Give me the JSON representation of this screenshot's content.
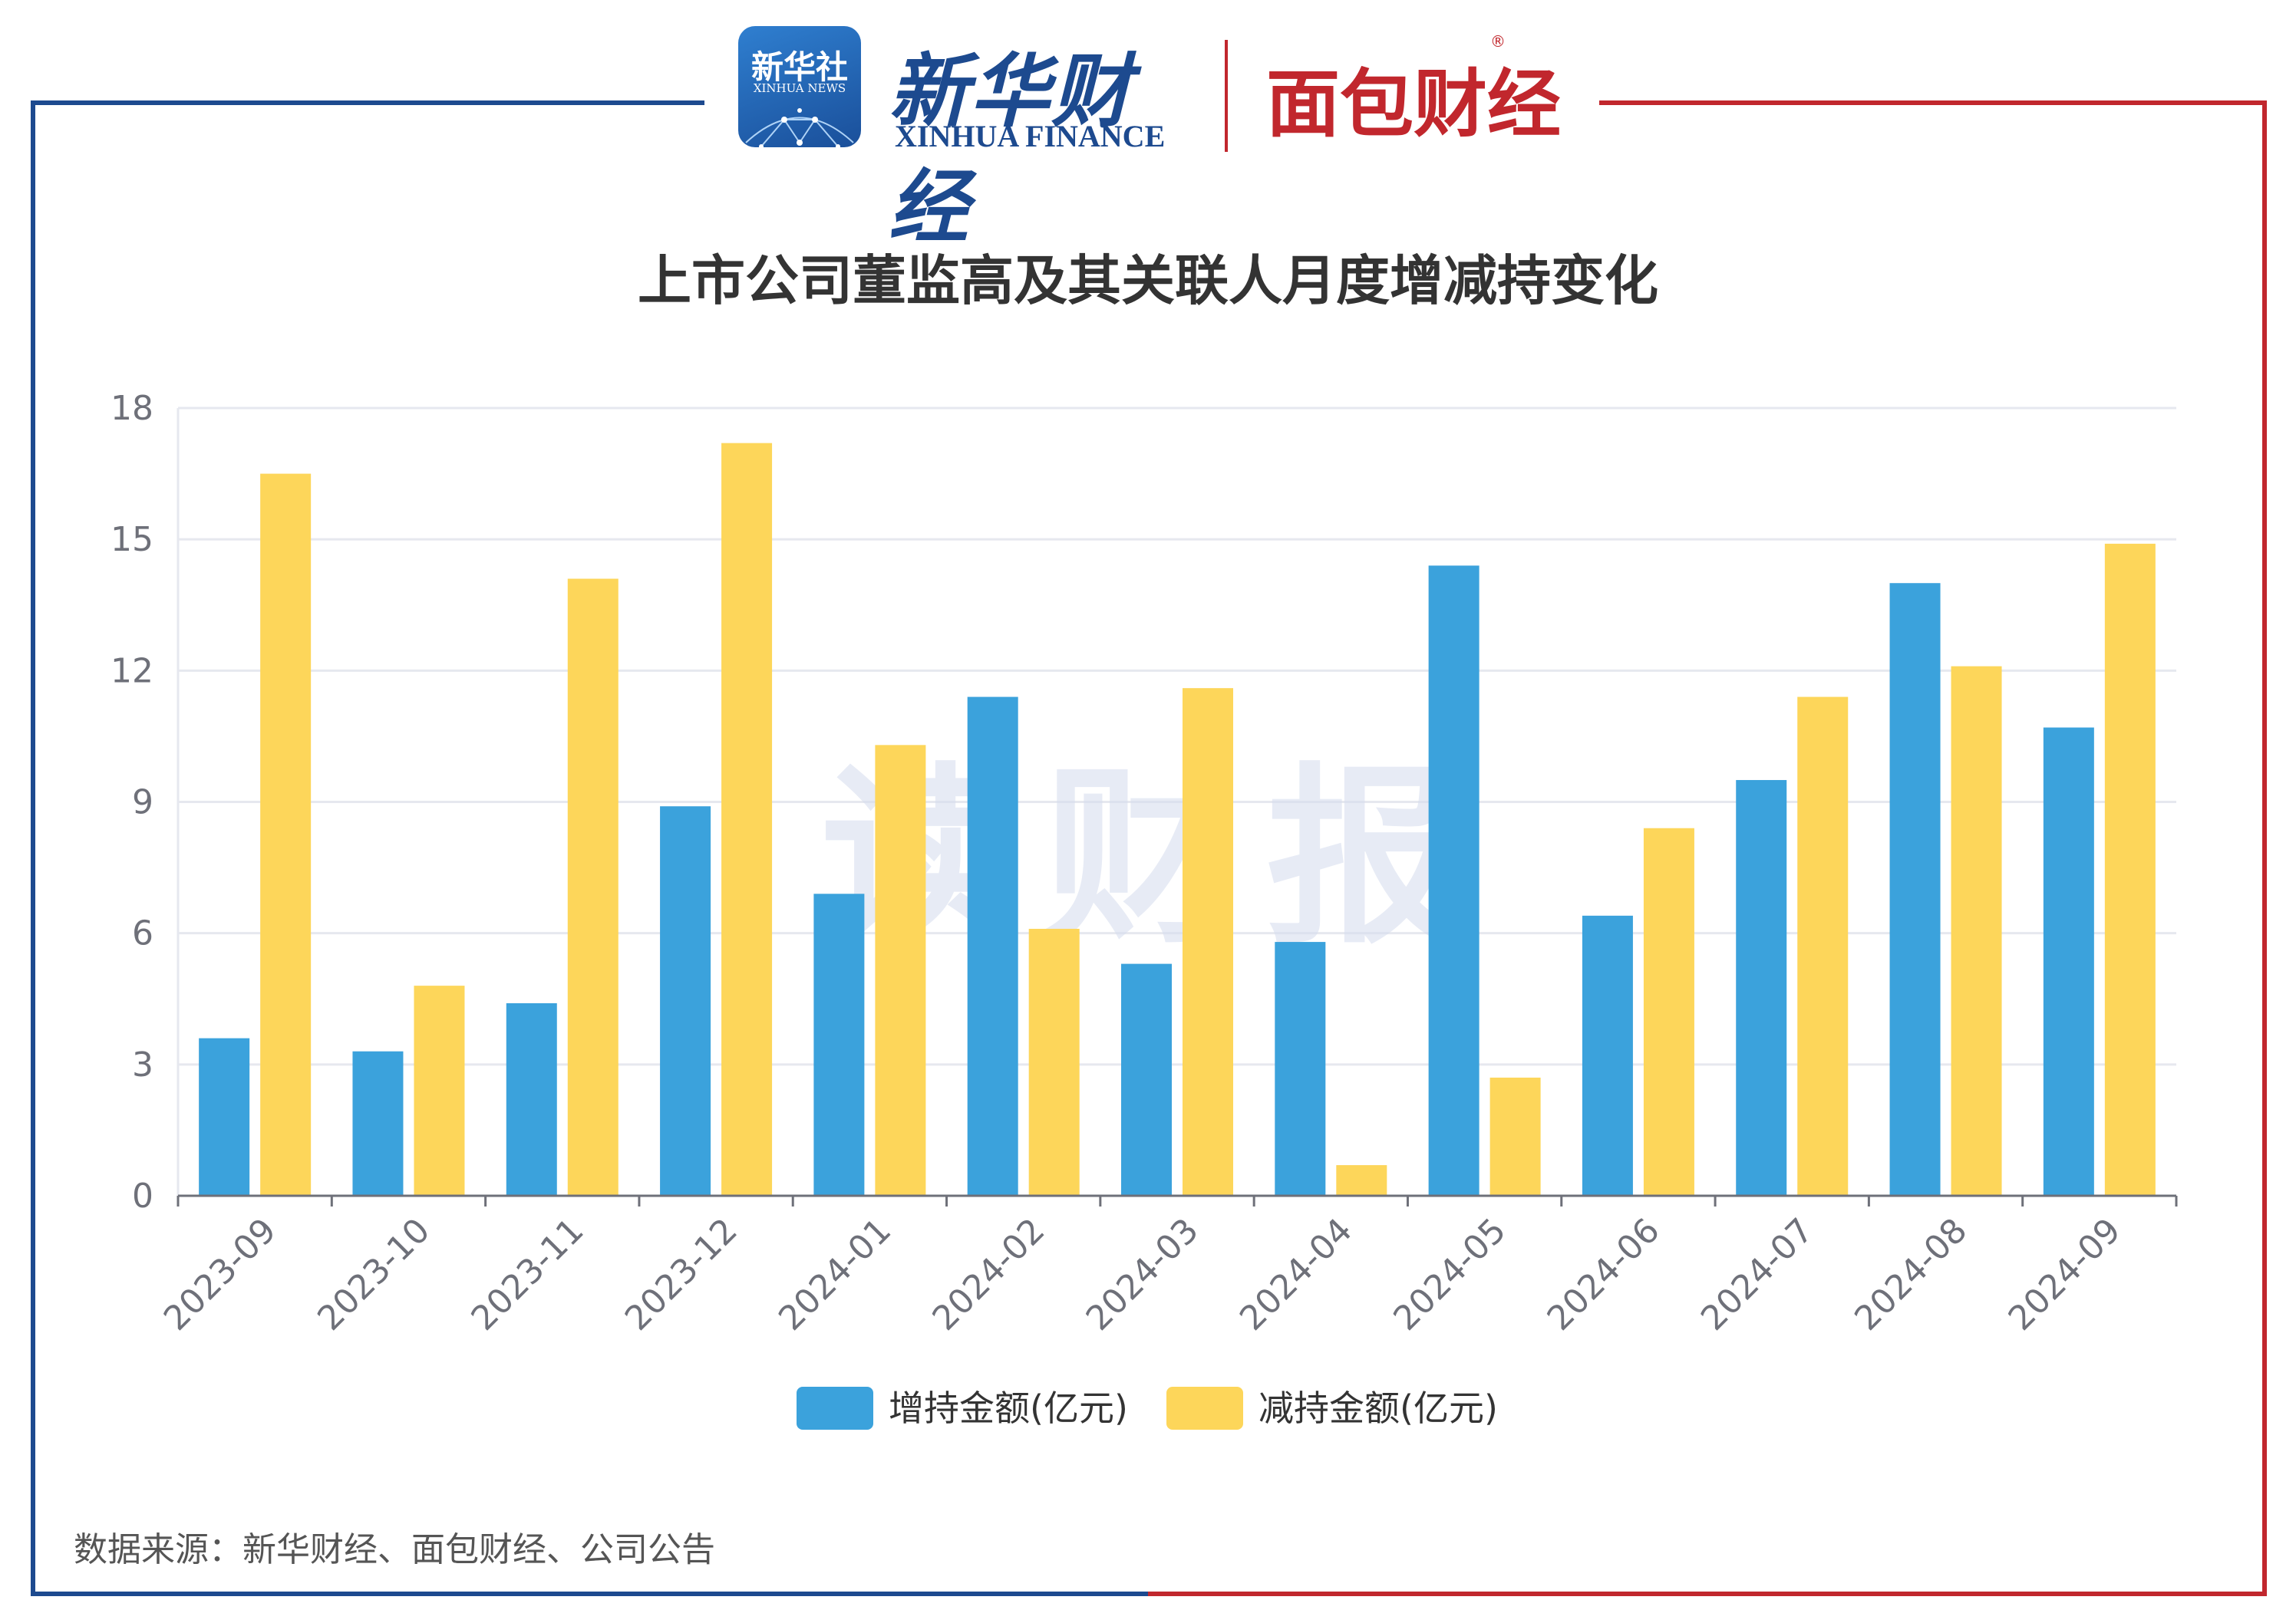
{
  "header": {
    "xinhua_news_logo": {
      "cn": "新华社",
      "en": "XINHUA NEWS"
    },
    "xinhua_finance_logo": {
      "cn": "新华财经",
      "en": "XINHUA FINANCE"
    },
    "mianbao_logo": {
      "cn": "面包财经"
    }
  },
  "watermark": "读财报",
  "source_note": "数据来源：新华财经、面包财经、公司公告",
  "colors": {
    "increase": "#3ba2dc",
    "decrease": "#fdd65a",
    "frame_left": "#1d4a8f",
    "frame_right": "#c1272d",
    "grid": "#e6e8ef",
    "axis": "#6e7079"
  },
  "chart_data": {
    "type": "bar",
    "title": "上市公司董监高及其关联人月度增减持变化",
    "categories": [
      "2023-09",
      "2023-10",
      "2023-11",
      "2023-12",
      "2024-01",
      "2024-02",
      "2024-03",
      "2024-04",
      "2024-05",
      "2024-06",
      "2024-07",
      "2024-08",
      "2024-09"
    ],
    "series": [
      {
        "name": "增持金额(亿元)",
        "values": [
          3.6,
          3.3,
          4.4,
          8.9,
          6.9,
          11.4,
          5.3,
          5.8,
          14.4,
          6.4,
          9.5,
          14.0,
          10.7
        ]
      },
      {
        "name": "减持金额(亿元)",
        "values": [
          16.5,
          4.8,
          14.1,
          17.2,
          10.3,
          6.1,
          11.6,
          0.7,
          2.7,
          8.4,
          11.4,
          12.1,
          14.9
        ]
      }
    ],
    "yticks": [
      "0",
      "3",
      "6",
      "9",
      "12",
      "15",
      "18"
    ],
    "ylim": [
      0,
      18
    ],
    "grid": true,
    "legend": "bottom"
  }
}
